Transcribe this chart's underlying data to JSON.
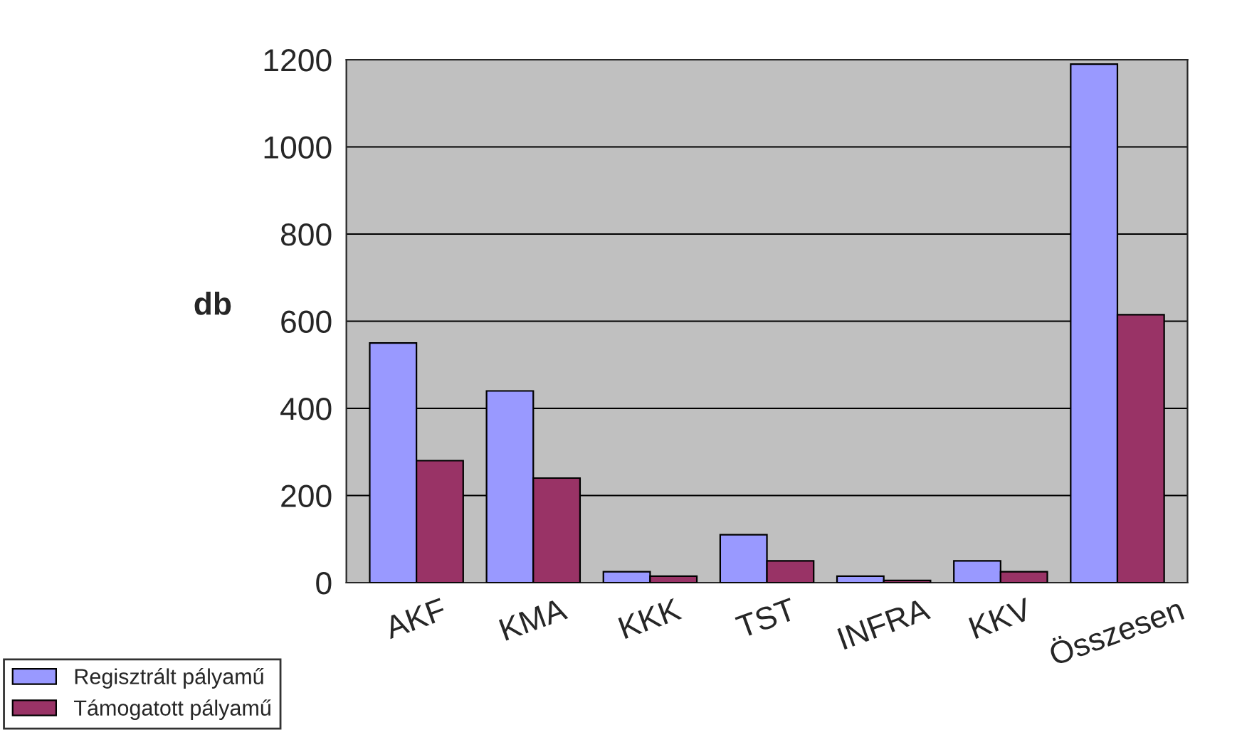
{
  "chart_data": {
    "type": "bar",
    "ylabel": "db",
    "categories": [
      "AKF",
      "KMA",
      "KKK",
      "TST",
      "INFRA",
      "KKV",
      "Összesen"
    ],
    "series": [
      {
        "name": "Regisztrált pályamű",
        "color": "#9999ff",
        "values": [
          550,
          440,
          25,
          110,
          15,
          50,
          1190
        ]
      },
      {
        "name": "Támogatott pályamű",
        "color": "#993366",
        "values": [
          280,
          240,
          15,
          50,
          5,
          25,
          615
        ]
      }
    ],
    "ylim": [
      0,
      1200
    ],
    "yticks": [
      0,
      200,
      400,
      600,
      800,
      1000,
      1200
    ],
    "grid": "y",
    "legend": "bottom left"
  }
}
